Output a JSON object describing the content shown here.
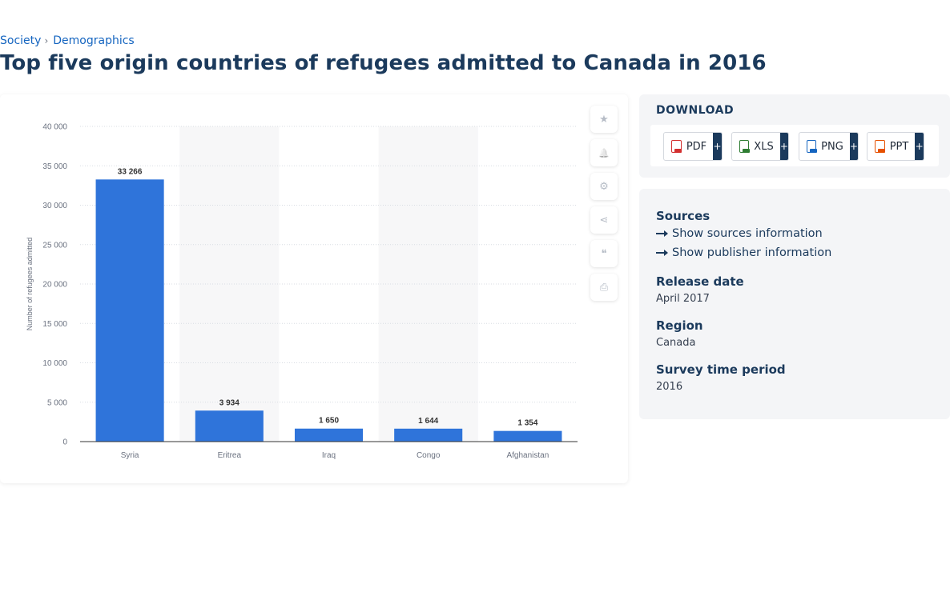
{
  "breadcrumb": {
    "items": [
      "Society",
      "Demographics"
    ]
  },
  "page_title": "Top five origin countries of refugees admitted to Canada in 2016",
  "chart_data": {
    "type": "bar",
    "title": "",
    "xlabel": "",
    "ylabel": "Number of refugees admitted",
    "categories": [
      "Syria",
      "Eritrea",
      "Iraq",
      "Congo",
      "Afghanistan"
    ],
    "values": [
      33266,
      3934,
      1650,
      1644,
      1354
    ],
    "data_labels": [
      "33 266",
      "3 934",
      "1 650",
      "1 644",
      "1 354"
    ],
    "ylim": [
      0,
      40000
    ],
    "yticks": [
      0,
      5000,
      10000,
      15000,
      20000,
      25000,
      30000,
      35000,
      40000
    ],
    "ytick_labels": [
      "0",
      "5 000",
      "10 000",
      "15 000",
      "20 000",
      "25 000",
      "30 000",
      "35 000",
      "40 000"
    ],
    "grid": true,
    "bar_color": "#2f74da",
    "band_color": "#f7f7f8"
  },
  "tools": [
    {
      "name": "favorite",
      "icon": "star-icon",
      "glyph": "★"
    },
    {
      "name": "notify",
      "icon": "bell-icon",
      "glyph": "🔔"
    },
    {
      "name": "settings",
      "icon": "gear-icon",
      "glyph": "⚙"
    },
    {
      "name": "share",
      "icon": "share-icon",
      "glyph": "⋖"
    },
    {
      "name": "cite",
      "icon": "quote-icon",
      "glyph": "❝"
    },
    {
      "name": "print",
      "icon": "print-icon",
      "glyph": "⎙"
    }
  ],
  "download": {
    "title": "DOWNLOAD",
    "formats": [
      {
        "label": "PDF",
        "color": "#d32f2f"
      },
      {
        "label": "XLS",
        "color": "#2e7d32"
      },
      {
        "label": "PNG",
        "color": "#1565c0"
      },
      {
        "label": "PPT",
        "color": "#e65100"
      }
    ],
    "plus": "+"
  },
  "meta": {
    "sources_heading": "Sources",
    "show_sources": "Show sources information",
    "show_publisher": "Show publisher information",
    "release_heading": "Release date",
    "release_value": "April 2017",
    "region_heading": "Region",
    "region_value": "Canada",
    "period_heading": "Survey time period",
    "period_value": "2016"
  }
}
